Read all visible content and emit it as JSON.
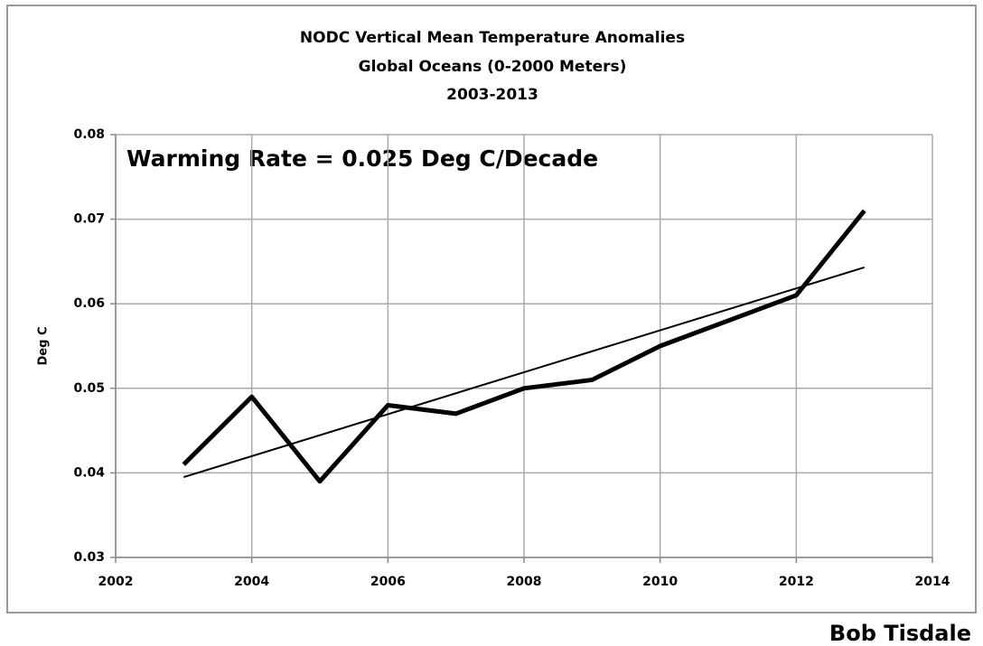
{
  "chart_data": {
    "type": "line",
    "title": [
      "NODC Vertical Mean Temperature Anomalies",
      "Global Oceans (0-2000 Meters)",
      "2003-2013"
    ],
    "ylabel": "Deg C",
    "annotation": "Warming Rate = 0.025 Deg C/Decade",
    "credit": "Bob Tisdale",
    "x": [
      2003,
      2004,
      2005,
      2006,
      2007,
      2008,
      2009,
      2010,
      2011,
      2012,
      2013
    ],
    "series": [
      {
        "color": "#000000",
        "values": [
          0.041,
          0.049,
          0.039,
          0.048,
          0.047,
          0.05,
          0.051,
          0.055,
          0.058,
          0.061,
          0.071
        ]
      },
      {
        "color": "#000000",
        "x": [
          2003,
          2013
        ],
        "values": [
          0.0395,
          0.0643
        ]
      }
    ],
    "xlim": [
      2002,
      2014
    ],
    "xticks": [
      2002,
      2004,
      2006,
      2008,
      2010,
      2012,
      2014
    ],
    "ylim": [
      0.03,
      0.08
    ],
    "yticks": [
      0.03,
      0.04,
      0.05,
      0.06,
      0.07,
      0.08
    ],
    "grid": true
  }
}
